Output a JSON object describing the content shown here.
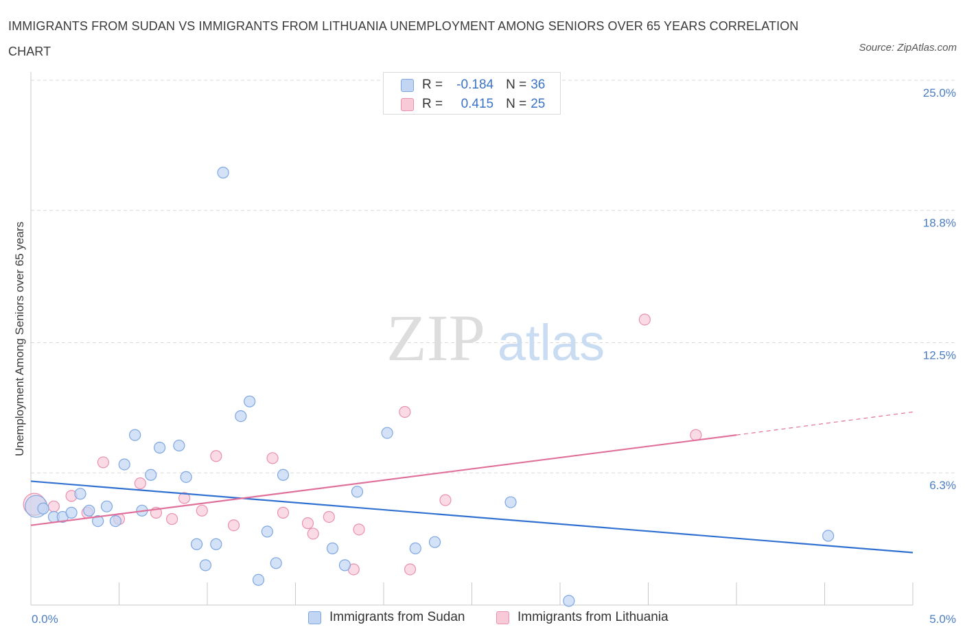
{
  "title": "IMMIGRANTS FROM SUDAN VS IMMIGRANTS FROM LITHUANIA UNEMPLOYMENT AMONG SENIORS OVER 65 YEARS CORRELATION CHART",
  "source": "Source: ZipAtlas.com",
  "watermark": {
    "zip": "ZIP",
    "atlas": "atlas"
  },
  "legend_top": [
    {
      "r_label": "R =",
      "r_value": "-0.184",
      "n_label": "N =",
      "n_value": "36"
    },
    {
      "r_label": "R =",
      "r_value": "0.415",
      "n_label": "N =",
      "n_value": "25"
    }
  ],
  "colors": {
    "sudan_fill": "#c2d6f3",
    "sudan_stroke": "#7da6e0",
    "sudan_line": "#3070d0",
    "lithuania_fill": "#f8cad8",
    "lithuania_stroke": "#e890ad",
    "lithuania_line": "#e0709a",
    "tick_text": "#4a7cc4",
    "grid": "#d9d9d9"
  },
  "chart_data": {
    "type": "scatter",
    "title": "IMMIGRANTS FROM SUDAN VS IMMIGRANTS FROM LITHUANIA UNEMPLOYMENT AMONG SENIORS OVER 65 YEARS CORRELATION CHART",
    "xlabel": "",
    "ylabel": "Unemployment Among Seniors over 65 years",
    "xlim": [
      0,
      5
    ],
    "ylim": [
      0,
      25
    ],
    "x_tick_labels": [
      "0.0%",
      "5.0%"
    ],
    "y_ticks": [
      6.3,
      12.5,
      18.8,
      25.0
    ],
    "y_tick_labels": [
      "6.3%",
      "12.5%",
      "18.8%",
      "25.0%"
    ],
    "grid": "horizontal dashed",
    "legend_position": "bottom",
    "series": [
      {
        "name": "Immigrants from Sudan",
        "r": -0.184,
        "n": 36,
        "trend": {
          "x": [
            0,
            5
          ],
          "y": [
            5.9,
            2.5
          ]
        },
        "points": [
          {
            "x": 0.03,
            "y": 4.7,
            "big": true
          },
          {
            "x": 0.07,
            "y": 4.6
          },
          {
            "x": 0.13,
            "y": 4.2
          },
          {
            "x": 0.18,
            "y": 4.2
          },
          {
            "x": 0.23,
            "y": 4.4
          },
          {
            "x": 0.28,
            "y": 5.3
          },
          {
            "x": 0.33,
            "y": 4.5
          },
          {
            "x": 0.38,
            "y": 4.0
          },
          {
            "x": 0.43,
            "y": 4.7
          },
          {
            "x": 0.48,
            "y": 4.0
          },
          {
            "x": 0.53,
            "y": 6.7
          },
          {
            "x": 0.59,
            "y": 8.1
          },
          {
            "x": 0.63,
            "y": 4.5
          },
          {
            "x": 0.68,
            "y": 6.2
          },
          {
            "x": 0.73,
            "y": 7.5
          },
          {
            "x": 0.84,
            "y": 7.6
          },
          {
            "x": 0.88,
            "y": 6.1
          },
          {
            "x": 0.94,
            "y": 2.9
          },
          {
            "x": 0.99,
            "y": 1.9
          },
          {
            "x": 1.05,
            "y": 2.9
          },
          {
            "x": 1.09,
            "y": 20.6
          },
          {
            "x": 1.19,
            "y": 9.0
          },
          {
            "x": 1.24,
            "y": 9.7
          },
          {
            "x": 1.29,
            "y": 1.2
          },
          {
            "x": 1.34,
            "y": 3.5
          },
          {
            "x": 1.39,
            "y": 2.0
          },
          {
            "x": 1.43,
            "y": 6.2
          },
          {
            "x": 1.71,
            "y": 2.7
          },
          {
            "x": 1.78,
            "y": 1.9
          },
          {
            "x": 1.85,
            "y": 5.4
          },
          {
            "x": 2.02,
            "y": 8.2
          },
          {
            "x": 2.18,
            "y": 2.7
          },
          {
            "x": 2.29,
            "y": 3.0
          },
          {
            "x": 2.72,
            "y": 4.9
          },
          {
            "x": 3.05,
            "y": 0.2
          },
          {
            "x": 4.52,
            "y": 3.3
          }
        ]
      },
      {
        "name": "Immigrants from Lithuania",
        "r": 0.415,
        "n": 25,
        "trend": {
          "x": [
            0,
            4.0
          ],
          "y": [
            3.8,
            8.1
          ]
        },
        "trend_dashed": {
          "x": [
            4.0,
            5.0
          ],
          "y": [
            8.1,
            9.2
          ]
        },
        "points": [
          {
            "x": 0.02,
            "y": 4.8,
            "big": true
          },
          {
            "x": 0.13,
            "y": 4.7
          },
          {
            "x": 0.23,
            "y": 5.2
          },
          {
            "x": 0.32,
            "y": 4.4
          },
          {
            "x": 0.41,
            "y": 6.8
          },
          {
            "x": 0.5,
            "y": 4.1
          },
          {
            "x": 0.62,
            "y": 5.8
          },
          {
            "x": 0.71,
            "y": 4.4
          },
          {
            "x": 0.8,
            "y": 4.1
          },
          {
            "x": 0.87,
            "y": 5.1
          },
          {
            "x": 0.97,
            "y": 4.5
          },
          {
            "x": 1.05,
            "y": 7.1
          },
          {
            "x": 1.15,
            "y": 3.8
          },
          {
            "x": 1.37,
            "y": 7.0
          },
          {
            "x": 1.43,
            "y": 4.4
          },
          {
            "x": 1.57,
            "y": 3.9
          },
          {
            "x": 1.6,
            "y": 3.4
          },
          {
            "x": 1.69,
            "y": 4.2
          },
          {
            "x": 1.83,
            "y": 1.7
          },
          {
            "x": 1.86,
            "y": 3.6
          },
          {
            "x": 2.12,
            "y": 9.2
          },
          {
            "x": 2.15,
            "y": 1.7
          },
          {
            "x": 2.35,
            "y": 5.0
          },
          {
            "x": 3.48,
            "y": 13.6
          },
          {
            "x": 3.77,
            "y": 8.1
          }
        ]
      }
    ]
  }
}
